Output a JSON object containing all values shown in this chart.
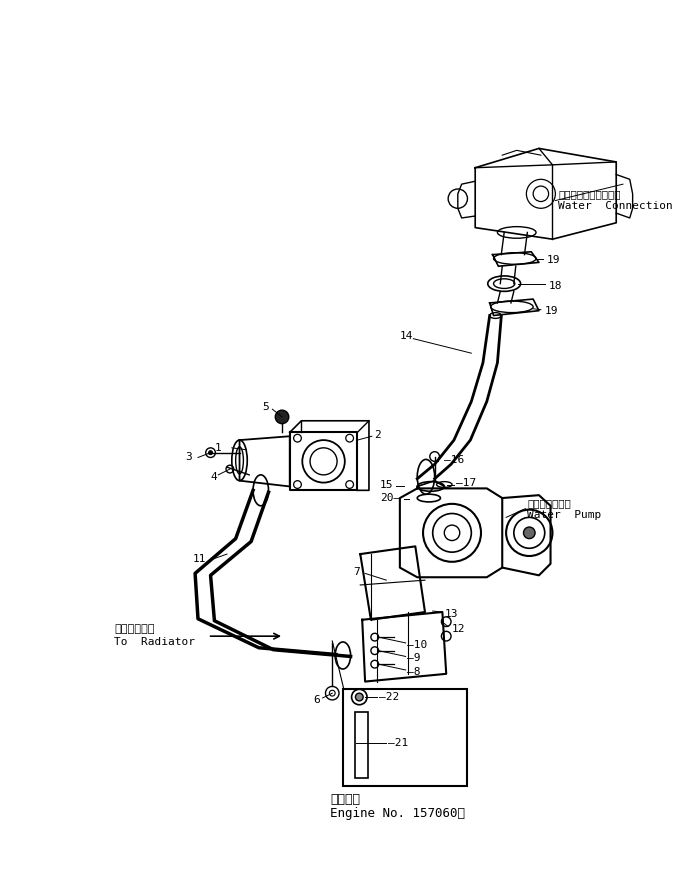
{
  "bg_color": "#ffffff",
  "line_color": "#000000",
  "fig_width": 6.94,
  "fig_height": 8.86,
  "title_japanese": "適用号機",
  "title_english": "Engine No. 157060～",
  "water_connection_jp": "ウォータコネクション",
  "water_connection_en": "Water  Connection",
  "water_pump_jp": "ウォータポンプ",
  "water_pump_en": "Water  Pump",
  "to_radiator_jp": "ラジエータヘ",
  "to_radiator_en": "To  Radiator"
}
